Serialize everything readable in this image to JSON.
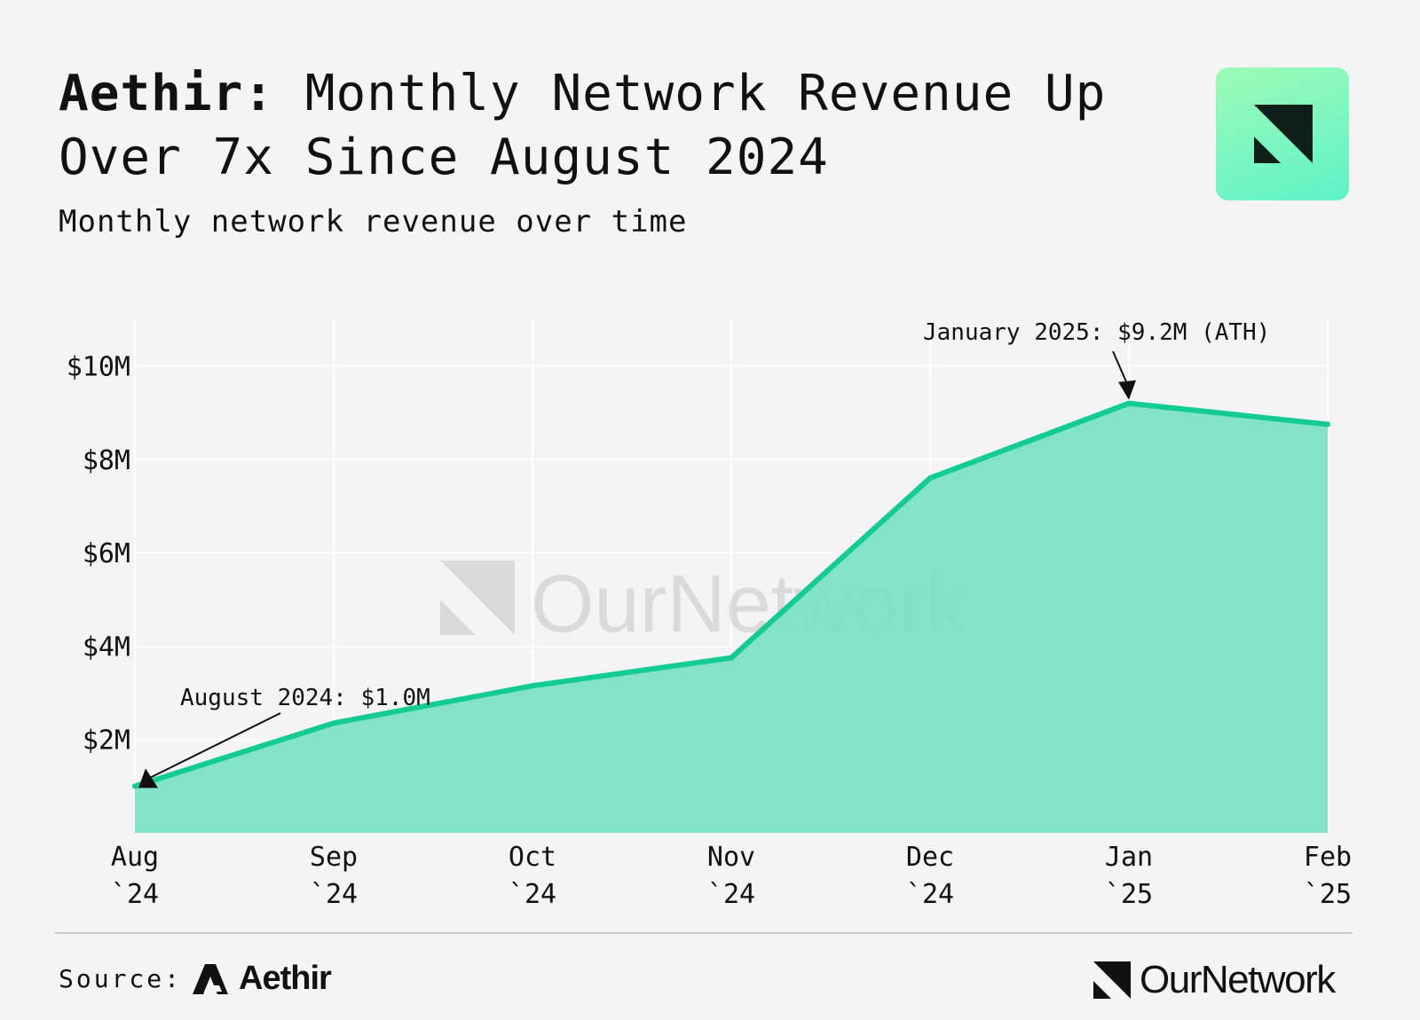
{
  "header": {
    "title_brand": "Aethir:",
    "title_rest": " Monthly Network Revenue Up Over 7x Since August 2024",
    "subtitle": "Monthly network revenue over time"
  },
  "logo_icon": "ournetwork-mark-icon",
  "watermark": "OurNetwork",
  "footer": {
    "source_label": "Source:",
    "source_brand": "Aethir",
    "source_brand_icon": "aethir-logo-icon",
    "publisher": "OurNetwork",
    "publisher_icon": "ournetwork-mark-icon"
  },
  "colors": {
    "line": "#12cc92",
    "area": "#7be0c7",
    "logo_gradient_top": "#9dfbb6",
    "logo_gradient_bottom": "#5ef2c8"
  },
  "chart_data": {
    "type": "area",
    "title": "Aethir: Monthly Network Revenue Up Over 7x Since August 2024",
    "subtitle": "Monthly network revenue over time",
    "categories": [
      [
        "Aug",
        "`24"
      ],
      [
        "Sep",
        "`24"
      ],
      [
        "Oct",
        "`24"
      ],
      [
        "Nov",
        "`24"
      ],
      [
        "Dec",
        "`24"
      ],
      [
        "Jan",
        "`25"
      ],
      [
        "Feb",
        "`25"
      ]
    ],
    "values": [
      1.0,
      2.35,
      3.15,
      3.75,
      7.6,
      9.2,
      8.75
    ],
    "unit": "$M",
    "ylim": [
      0,
      11
    ],
    "yticks": [
      2,
      4,
      6,
      8,
      10
    ],
    "ytick_labels": [
      "$2M",
      "$4M",
      "$6M",
      "$8M",
      "$10M"
    ],
    "grid": true,
    "annotations": [
      {
        "text": "August 2024: $1.0M",
        "category_index": 0,
        "value": 1.0
      },
      {
        "text": "January 2025: $9.2M (ATH)",
        "category_index": 5,
        "value": 9.2
      }
    ]
  }
}
